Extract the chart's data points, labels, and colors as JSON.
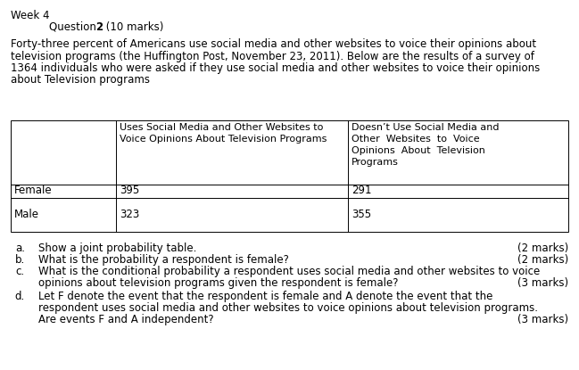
{
  "week_label": "Week 4",
  "question_pre": "Question ",
  "question_bold": "2",
  "question_post": " (10 marks)",
  "intro_lines": [
    "Forty-three percent of Americans use social media and other websites to voice their opinions about",
    "television programs (the Huffington Post, November 23, 2011). Below are the results of a survey of",
    "1364 individuals who were asked if they use social media and other websites to voice their opinions",
    "about Television programs"
  ],
  "col1_header_lines": [
    "Uses Social Media and Other Websites to",
    "Voice Opinions About Television Programs"
  ],
  "col2_header_lines": [
    "Doesn’t Use Social Media and",
    "Other  Websites  to  Voice",
    "Opinions  About  Television",
    "Programs"
  ],
  "row1_label": "Female",
  "row2_label": "Male",
  "row1_col1": "395",
  "row1_col2": "291",
  "row2_col1": "323",
  "row2_col2": "355",
  "qa": {
    "letter": "a.",
    "text": "Show a joint probability table.",
    "marks": "(2 marks)"
  },
  "qb": {
    "letter": "b.",
    "text": "What is the probability a respondent is female?",
    "marks": "(2 marks)"
  },
  "qc": {
    "letter": "c.",
    "line1": "What is the conditional probability a respondent uses social media and other websites to voice",
    "line2": "opinions about television programs given the respondent is female?",
    "marks": "(3 marks)"
  },
  "qd": {
    "letter": "d.",
    "line1": "Let F denote the event that the respondent is female and A denote the event that the",
    "line2": "respondent uses social media and other websites to voice opinions about television programs.",
    "line3": "Are events F and A independent?",
    "marks": "(3 marks)"
  },
  "bg_color": "#ffffff",
  "text_color": "#000000"
}
